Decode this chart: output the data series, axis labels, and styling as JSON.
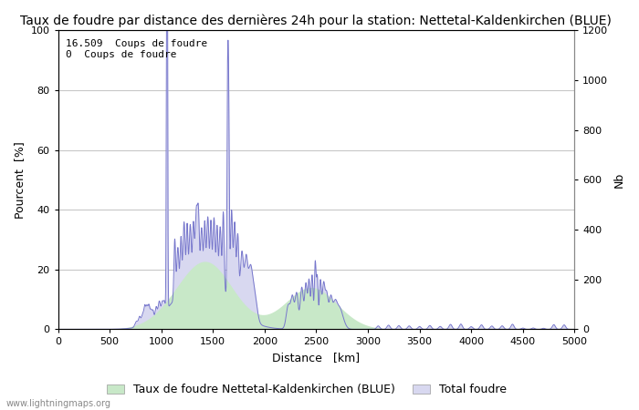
{
  "title": "Taux de foudre par distance des dernières 24h pour la station: Nettetal-Kaldenkirchen (BLUE)",
  "xlabel": "Distance   [km]",
  "ylabel_left": "Pourcent  [%]",
  "ylabel_right": "Nb",
  "annotation_line1": "16.509  Coups de foudre",
  "annotation_line2": "0  Coups de foudre",
  "xlim": [
    0,
    5000
  ],
  "ylim_left": [
    0,
    100
  ],
  "ylim_right": [
    0,
    1200
  ],
  "xticks": [
    0,
    500,
    1000,
    1500,
    2000,
    2500,
    3000,
    3500,
    4000,
    4500,
    5000
  ],
  "yticks_left": [
    0,
    20,
    40,
    60,
    80,
    100
  ],
  "yticks_right": [
    0,
    200,
    400,
    600,
    800,
    1000,
    1200
  ],
  "legend_label_green": "Taux de foudre Nettetal-Kaldenkirchen (BLUE)",
  "legend_label_blue": "Total foudre",
  "watermark": "www.lightningmaps.org",
  "bg_color": "#ffffff",
  "grid_color": "#c8c8c8",
  "line_color_blue": "#7777cc",
  "fill_color_blue": "#d8d8f0",
  "fill_color_green": "#c8e8c8",
  "title_fontsize": 10,
  "label_fontsize": 9,
  "tick_fontsize": 8,
  "annotation_fontsize": 8
}
